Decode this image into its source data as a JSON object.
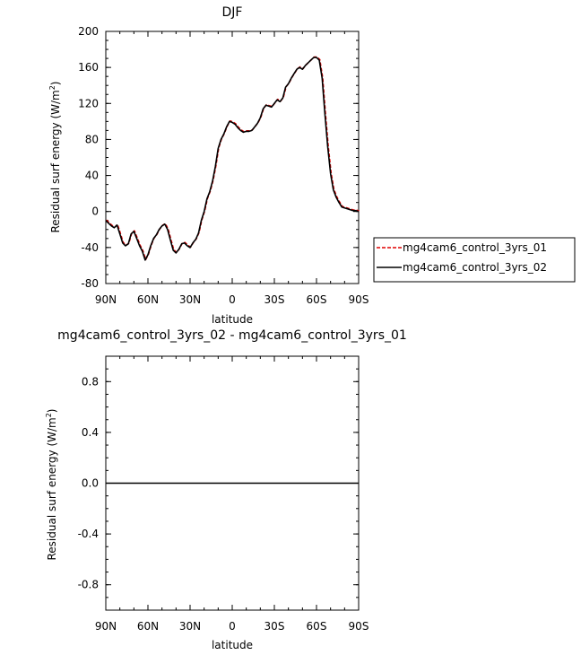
{
  "chart_data": [
    {
      "type": "line",
      "title": "DJF",
      "xlabel": "latitude",
      "ylabel": "Residual surf energy (W/m",
      "ylabel_sup": "2",
      "ylabel_close": ")",
      "xlim": [
        90,
        -90
      ],
      "ylim": [
        -80,
        200
      ],
      "x_ticks": [
        90,
        60,
        30,
        0,
        -30,
        -60,
        -90
      ],
      "x_tick_labels": [
        "90N",
        "60N",
        "30N",
        "0",
        "30S",
        "60S",
        "90S"
      ],
      "y_ticks": [
        -80,
        -40,
        0,
        40,
        80,
        120,
        160,
        200
      ],
      "y_tick_labels": [
        "-80",
        "-40",
        "0",
        "40",
        "80",
        "120",
        "160",
        "200"
      ],
      "legend": {
        "placement": "right"
      },
      "series": [
        {
          "name": "mg4cam6_control_3yrs_01",
          "color": "#e00000",
          "dash": "dashed",
          "x": [
            90,
            88,
            86,
            84,
            82,
            80,
            78,
            76,
            74,
            72,
            70,
            68,
            66,
            64,
            62,
            60,
            58,
            56,
            54,
            52,
            50,
            48,
            46,
            44,
            42,
            40,
            38,
            36,
            34,
            32,
            30,
            28,
            26,
            24,
            22,
            20,
            18,
            16,
            14,
            12,
            10,
            8,
            6,
            4,
            2,
            0,
            -2,
            -4,
            -6,
            -8,
            -10,
            -12,
            -14,
            -16,
            -18,
            -20,
            -22,
            -24,
            -26,
            -28,
            -30,
            -32,
            -34,
            -36,
            -38,
            -40,
            -42,
            -44,
            -46,
            -48,
            -50,
            -52,
            -54,
            -56,
            -58,
            -60,
            -62,
            -64,
            -66,
            -68,
            -70,
            -72,
            -74,
            -76,
            -78,
            -80,
            -82,
            -84,
            -86,
            -88,
            -90
          ],
          "y": [
            -10,
            -13,
            -16,
            -18,
            -15,
            -25,
            -35,
            -38,
            -36,
            -25,
            -22,
            -30,
            -38,
            -44,
            -54,
            -48,
            -38,
            -30,
            -26,
            -20,
            -16,
            -14,
            -20,
            -32,
            -43,
            -46,
            -42,
            -36,
            -35,
            -38,
            -40,
            -35,
            -31,
            -24,
            -10,
            0,
            14,
            22,
            34,
            50,
            70,
            80,
            86,
            94,
            100,
            99,
            97,
            93,
            90,
            88,
            89,
            89,
            90,
            94,
            98,
            104,
            114,
            118,
            117,
            116,
            120,
            124,
            122,
            126,
            138,
            142,
            148,
            153,
            158,
            160,
            158,
            162,
            165,
            168,
            171,
            171,
            168,
            148,
            108,
            72,
            42,
            24,
            16,
            10,
            5,
            4,
            3,
            2,
            1,
            1,
            0
          ]
        },
        {
          "name": "mg4cam6_control_3yrs_02",
          "color": "#000000",
          "dash": "solid",
          "x": [
            90,
            88,
            86,
            84,
            82,
            80,
            78,
            76,
            74,
            72,
            70,
            68,
            66,
            64,
            62,
            60,
            58,
            56,
            54,
            52,
            50,
            48,
            46,
            44,
            42,
            40,
            38,
            36,
            34,
            32,
            30,
            28,
            26,
            24,
            22,
            20,
            18,
            16,
            14,
            12,
            10,
            8,
            6,
            4,
            2,
            0,
            -2,
            -4,
            -6,
            -8,
            -10,
            -12,
            -14,
            -16,
            -18,
            -20,
            -22,
            -24,
            -26,
            -28,
            -30,
            -32,
            -34,
            -36,
            -38,
            -40,
            -42,
            -44,
            -46,
            -48,
            -50,
            -52,
            -54,
            -56,
            -58,
            -60,
            -62,
            -64,
            -66,
            -68,
            -70,
            -72,
            -74,
            -76,
            -78,
            -80,
            -82,
            -84,
            -86,
            -88,
            -90
          ],
          "y": [
            -10,
            -13,
            -16,
            -18,
            -15,
            -25,
            -35,
            -38,
            -36,
            -25,
            -22,
            -30,
            -38,
            -44,
            -54,
            -48,
            -38,
            -30,
            -26,
            -20,
            -16,
            -14,
            -20,
            -32,
            -43,
            -46,
            -42,
            -36,
            -35,
            -38,
            -40,
            -35,
            -31,
            -24,
            -10,
            0,
            14,
            22,
            34,
            50,
            70,
            80,
            86,
            94,
            100,
            99,
            97,
            93,
            90,
            88,
            89,
            89,
            90,
            94,
            98,
            104,
            114,
            118,
            117,
            116,
            120,
            124,
            122,
            126,
            138,
            142,
            148,
            153,
            158,
            160,
            158,
            162,
            165,
            168,
            171,
            171,
            168,
            148,
            108,
            72,
            42,
            24,
            16,
            10,
            5,
            4,
            3,
            2,
            1,
            1,
            0
          ]
        }
      ]
    },
    {
      "type": "line",
      "title": "mg4cam6_control_3yrs_02 - mg4cam6_control_3yrs_01",
      "xlabel": "latitude",
      "ylabel": "Residual surf energy (W/m",
      "ylabel_sup": "2",
      "ylabel_close": ")",
      "xlim": [
        90,
        -90
      ],
      "ylim": [
        -1,
        1
      ],
      "x_ticks": [
        90,
        60,
        30,
        0,
        -30,
        -60,
        -90
      ],
      "x_tick_labels": [
        "90N",
        "60N",
        "30N",
        "0",
        "30S",
        "60S",
        "90S"
      ],
      "y_ticks": [
        -0.8,
        -0.4,
        0.0,
        0.4,
        0.8
      ],
      "y_tick_labels": [
        "-0.8",
        "-0.4",
        "0.0",
        "0.4",
        "0.8"
      ],
      "series": [
        {
          "color": "#000000",
          "dash": "solid",
          "x": [
            90,
            -90
          ],
          "y": [
            0,
            0
          ]
        }
      ]
    }
  ]
}
